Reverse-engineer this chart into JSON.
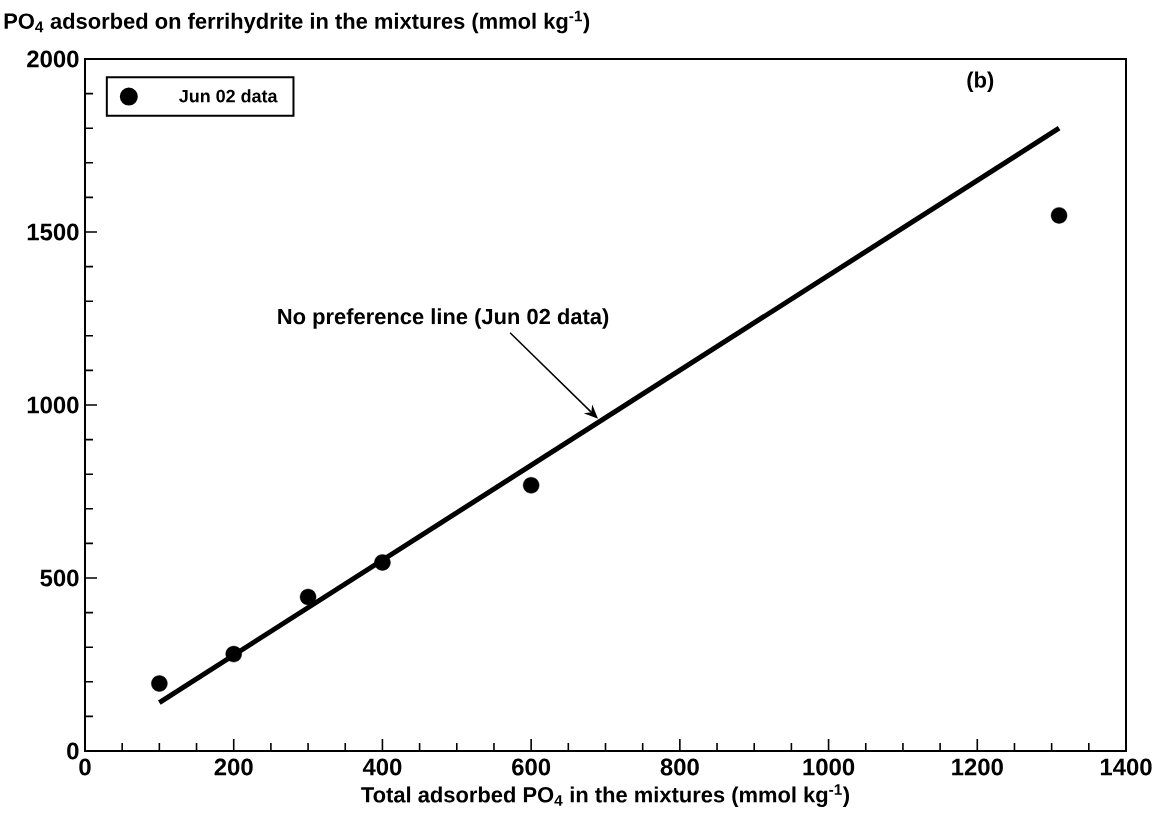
{
  "chart_data": {
    "type": "scatter",
    "ylabel": "PO$_{4}$ adsorbed on ferrihydrite in the mixtures (mmol kg$^{-1}$)",
    "xlabel": "Total adsorbed PO$_{4}$ in the mixtures (mmol kg$^{-1}$)",
    "series": [
      {
        "name": "Jun 02 data",
        "color": "#000000",
        "marker": "circle",
        "x": [
          100,
          200,
          300,
          400,
          600,
          1310
        ],
        "values": [
          195,
          280,
          445,
          545,
          768,
          1548
        ]
      },
      {
        "type": "line",
        "color": "#000000",
        "marker": "none",
        "line_style": "solid",
        "x": [
          100,
          1310
        ],
        "values": [
          140,
          1800
        ]
      }
    ],
    "annotations": [
      "(b)",
      {
        "text": "No preference line (Jun 02 data)",
        "x": 690,
        "y": 960
      }
    ],
    "xlim": [
      0,
      1400
    ],
    "ylim": [
      0,
      2000
    ],
    "xticks": [
      0,
      200,
      400,
      600,
      800,
      1000,
      1200,
      1400
    ],
    "yticks": [
      0,
      500,
      1000,
      1500,
      2000
    ],
    "grid": false,
    "legend": "top left"
  }
}
